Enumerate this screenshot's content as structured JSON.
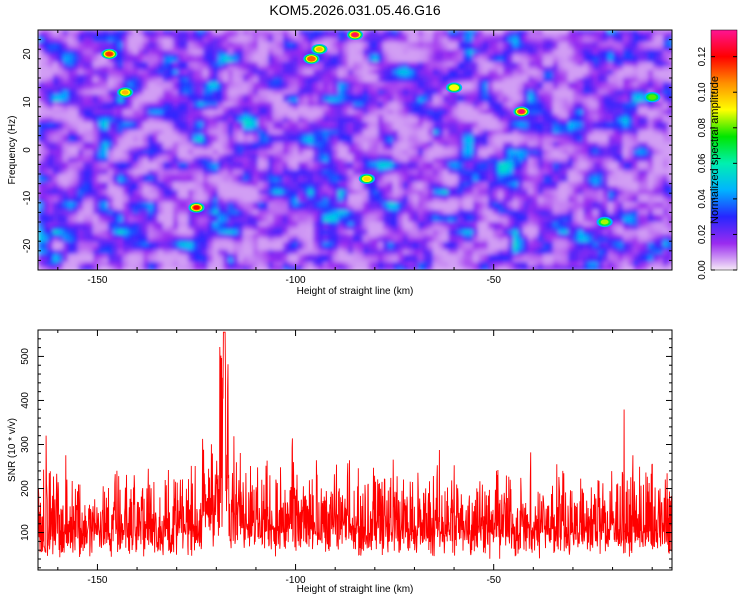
{
  "title": "KOM5.2026.031.05.46.G16",
  "chart_data": [
    {
      "type": "heatmap",
      "xlabel": "Height of straight line (km)",
      "ylabel": "Frequency (Hz)",
      "xlim": [
        -165,
        -5
      ],
      "ylim": [
        -25,
        25
      ],
      "xticks": [
        -150,
        -100,
        -50
      ],
      "yticks": [
        -20,
        -10,
        0,
        10,
        20
      ],
      "colorbar": {
        "label": "Normalized spectral amplitude",
        "range": [
          0,
          0.135
        ],
        "ticks": [
          0.0,
          0.02,
          0.04,
          0.06,
          0.08,
          0.1,
          0.12
        ],
        "tick_labels": [
          "0.00",
          "0.02",
          "0.04",
          "0.06",
          "0.08",
          "0.10",
          "0.12"
        ],
        "colormap": [
          "#f6eaf7",
          "#9a2bf0",
          "#2626ff",
          "#00b4ff",
          "#00f0b0",
          "#00e600",
          "#ffff00",
          "#ff9000",
          "#ff0000",
          "#ff1493"
        ]
      },
      "peak_blobs": [
        {
          "x": -147,
          "y": 20,
          "amp": 0.115
        },
        {
          "x": -143,
          "y": 12,
          "amp": 0.1
        },
        {
          "x": -125,
          "y": -12,
          "amp": 0.12
        },
        {
          "x": -96,
          "y": 19,
          "amp": 0.11
        },
        {
          "x": -94,
          "y": 21,
          "amp": 0.1
        },
        {
          "x": -85,
          "y": 24,
          "amp": 0.13
        },
        {
          "x": -82,
          "y": -6,
          "amp": 0.095
        },
        {
          "x": -60,
          "y": 13,
          "amp": 0.09
        },
        {
          "x": -43,
          "y": 8,
          "amp": 0.13
        },
        {
          "x": -22,
          "y": -15,
          "amp": 0.085
        },
        {
          "x": -10,
          "y": 11,
          "amp": 0.08
        }
      ]
    },
    {
      "type": "line",
      "xlabel": "Height of straight line (km)",
      "ylabel": "SNR (10 * v/v)",
      "xlim": [
        -165,
        -5
      ],
      "ylim": [
        15,
        560
      ],
      "xticks": [
        -150,
        -100,
        -50
      ],
      "yticks": [
        100,
        200,
        300,
        400,
        500
      ],
      "series": [
        {
          "name": "SNR",
          "color": "#ff0000",
          "baseline": 150,
          "spread": 90,
          "peak": {
            "x": -118,
            "value": 555
          }
        }
      ]
    }
  ]
}
